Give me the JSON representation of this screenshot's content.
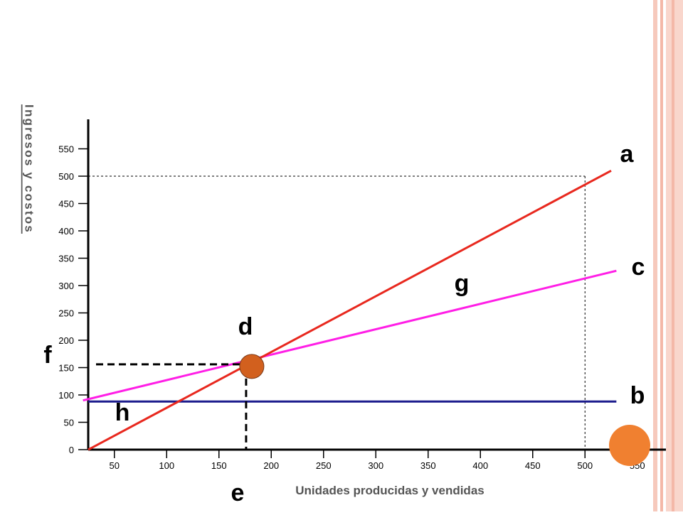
{
  "chart_data": {
    "type": "line",
    "xlabel": "Unidades producidas y vendidas",
    "ylabel": "Ingresos y costos",
    "xlim": [
      25,
      575
    ],
    "ylim": [
      0,
      590
    ],
    "x_ticks": [
      50,
      100,
      150,
      200,
      250,
      300,
      350,
      400,
      450,
      500,
      550
    ],
    "y_ticks": [
      0,
      50,
      100,
      150,
      200,
      250,
      300,
      350,
      400,
      450,
      500,
      550
    ],
    "series": [
      {
        "label": "a",
        "color": "#e8281e",
        "points": [
          [
            25,
            0
          ],
          [
            525,
            510
          ]
        ]
      },
      {
        "label": "c",
        "color": "#ff1ee6",
        "points": [
          [
            20,
            90
          ],
          [
            530,
            327
          ]
        ]
      },
      {
        "label": "b",
        "color": "#1a1a8c",
        "points": [
          [
            25,
            88
          ],
          [
            530,
            88
          ]
        ]
      }
    ],
    "break_even_point": {
      "x": 178,
      "y": 156
    },
    "reference_point": {
      "x": 500,
      "y": 500
    },
    "annotations": [
      "a",
      "b",
      "c",
      "d",
      "e",
      "f",
      "g",
      "h"
    ]
  },
  "decor": {
    "accent_circle_color": "#f08030",
    "marker_color": "#d2601e",
    "frame_color": "#f4b8a8"
  }
}
